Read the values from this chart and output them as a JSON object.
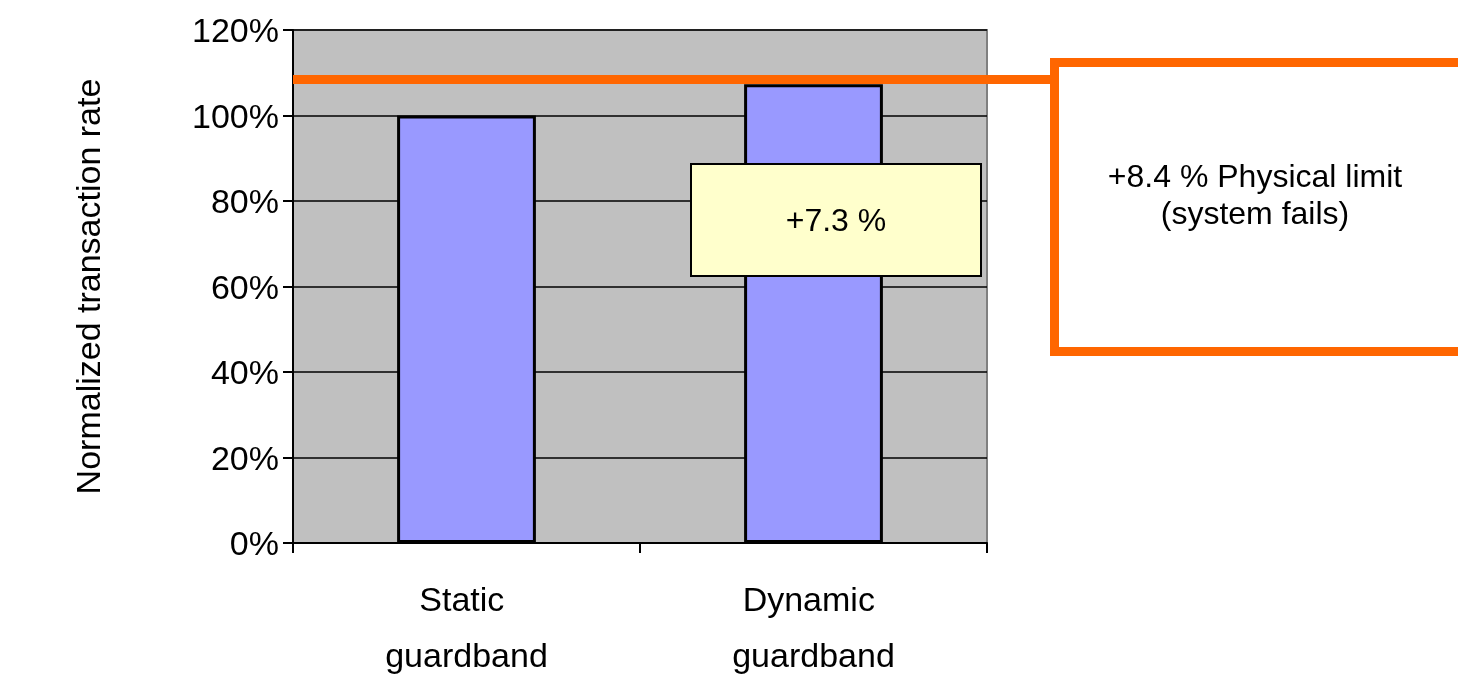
{
  "chart_data": {
    "type": "bar",
    "ylabel": "Normalized transaction rate",
    "categories": [
      "Static guardband",
      "Dynamic guardband"
    ],
    "values": [
      100,
      107.3
    ],
    "color": "#9999ff",
    "ylim": [
      0,
      120
    ],
    "yticks": [
      {
        "value": 0,
        "label": "0%"
      },
      {
        "value": 20,
        "label": "20%"
      },
      {
        "value": 40,
        "label": "40%"
      },
      {
        "value": 60,
        "label": "60%"
      },
      {
        "value": 80,
        "label": "80%"
      },
      {
        "value": 100,
        "label": "100%"
      },
      {
        "value": 120,
        "label": "120%"
      }
    ],
    "grid": "y",
    "ref_lines": [
      {
        "axis": "y",
        "value": 108.4,
        "color": "#ff6600"
      }
    ],
    "annotations": [
      "+7.3 %",
      "+8.4 % Physical limit (system fails)"
    ]
  }
}
